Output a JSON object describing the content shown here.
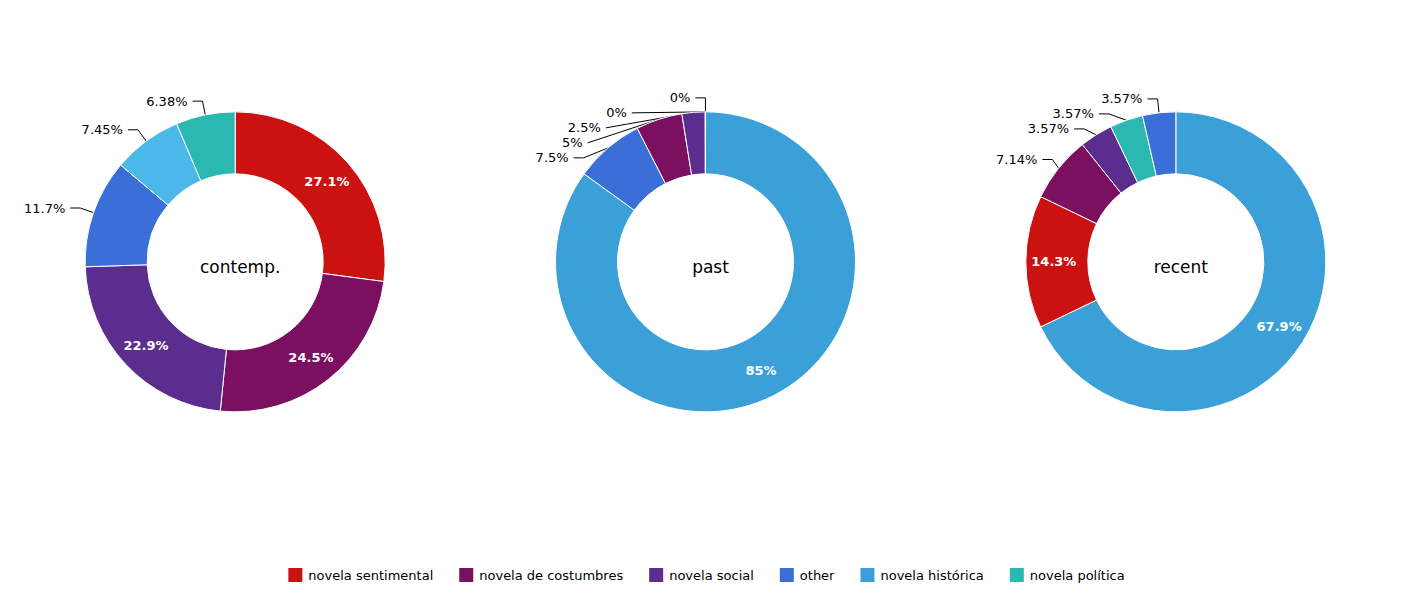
{
  "chart_data": [
    {
      "type": "pie",
      "title": "contemp.",
      "categories": [
        "novela sentimental",
        "novela de costumbres",
        "novela social",
        "other",
        "novela histórica",
        "novela política"
      ],
      "values": [
        27.1,
        24.5,
        22.9,
        11.7,
        7.45,
        6.38
      ],
      "value_labels": [
        "27.1%",
        "24.5%",
        "22.9%",
        "11.7%",
        "7.45%",
        "6.38%"
      ],
      "colors": [
        "#cc1111",
        "#7b1060",
        "#5b2d8e",
        "#3a6fd8",
        "#4ab8e8",
        "#2ab8b0"
      ],
      "data_labels": true,
      "legend": "bottom"
    },
    {
      "type": "pie",
      "title": "past",
      "categories": [
        "novela histórica",
        "other",
        "novela de costumbres",
        "novela social",
        "novela política",
        "novela sentimental"
      ],
      "values": [
        85.0,
        7.5,
        5.0,
        2.5,
        0.01,
        0.01
      ],
      "value_labels": [
        "85%",
        "7.5%",
        "5%",
        "2.5%",
        "0%",
        "0%"
      ],
      "colors": [
        "#3b9fd8",
        "#3a6fd8",
        "#7b1060",
        "#5b2d8e",
        "#2ab8b0",
        "#cc1111"
      ],
      "data_labels": true,
      "legend": "bottom"
    },
    {
      "type": "pie",
      "title": "recent",
      "categories": [
        "novela histórica",
        "novela sentimental",
        "novela de costumbres",
        "novela social",
        "novela política",
        "other"
      ],
      "values": [
        67.9,
        14.3,
        7.14,
        3.57,
        3.57,
        3.57
      ],
      "value_labels": [
        "67.9%",
        "14.3%",
        "7.14%",
        "3.57%",
        "3.57%",
        "3.57%"
      ],
      "colors": [
        "#3b9fd8",
        "#cc1111",
        "#7b1060",
        "#5b2d8e",
        "#2ab8b0",
        "#3a6fd8"
      ],
      "data_labels": true,
      "legend": "bottom"
    }
  ]
}
